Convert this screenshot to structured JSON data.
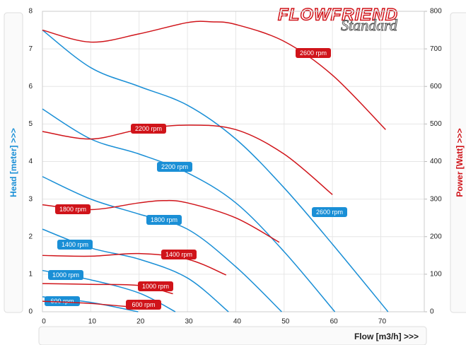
{
  "logo": {
    "brand": "FLOWFRIEND",
    "edition": "Standard"
  },
  "chart_data": {
    "type": "line",
    "xlabel": "Flow [m3/h] >>>",
    "ylabel": "Head [meter] >>>",
    "y2label": "Power [Watt] >>>",
    "xlim": [
      0,
      79
    ],
    "xticks": [
      0,
      10,
      20,
      30,
      40,
      50,
      60,
      70
    ],
    "ylim": [
      0,
      8
    ],
    "yticks": [
      0,
      1,
      2,
      3,
      4,
      5,
      6,
      7,
      8
    ],
    "y2lim": [
      0,
      800
    ],
    "y2ticks": [
      0,
      100,
      200,
      300,
      400,
      500,
      600,
      700,
      800
    ],
    "grid": true,
    "series": [
      {
        "name": "2600 rpm",
        "color": "#1a8fd6",
        "x": [
          0,
          10,
          20,
          30,
          40,
          50,
          60,
          71.5
        ],
        "values": [
          7.5,
          6.5,
          6.0,
          5.5,
          4.6,
          3.3,
          1.8,
          0
        ]
      },
      {
        "name": "2200 rpm",
        "color": "#1a8fd6",
        "x": [
          0,
          10,
          20,
          30,
          40,
          50,
          60.5
        ],
        "values": [
          5.4,
          4.6,
          4.2,
          3.7,
          2.9,
          1.6,
          0
        ]
      },
      {
        "name": "1800 rpm",
        "color": "#1a8fd6",
        "x": [
          0,
          10,
          20,
          30,
          40,
          49.5
        ],
        "values": [
          3.6,
          3.0,
          2.6,
          2.2,
          1.2,
          0
        ]
      },
      {
        "name": "1400 rpm",
        "color": "#1a8fd6",
        "x": [
          0,
          10,
          20,
          30,
          38.5
        ],
        "values": [
          2.2,
          1.7,
          1.4,
          0.9,
          0
        ]
      },
      {
        "name": "1000 rpm",
        "color": "#1a8fd6",
        "x": [
          0,
          10,
          20,
          27.5
        ],
        "values": [
          1.1,
          0.85,
          0.5,
          0
        ]
      },
      {
        "name": "600 rpm",
        "color": "#1a8fd6",
        "x": [
          0,
          10,
          19.8
        ],
        "values": [
          0.4,
          0.25,
          0
        ]
      },
      {
        "name": "2600 rpm",
        "color": "#d0141a",
        "axis": "y2",
        "x": [
          0,
          10,
          20,
          30,
          35,
          40,
          50,
          60,
          71
        ],
        "values": [
          750,
          718,
          740,
          770,
          772,
          765,
          720,
          630,
          485
        ]
      },
      {
        "name": "2200 rpm",
        "color": "#d0141a",
        "axis": "y2",
        "x": [
          0,
          10,
          20,
          30,
          40,
          50,
          60
        ],
        "values": [
          480,
          460,
          485,
          497,
          485,
          420,
          312
        ]
      },
      {
        "name": "1800 rpm",
        "color": "#d0141a",
        "axis": "y2",
        "x": [
          0,
          10,
          20,
          25,
          30,
          40,
          49
        ],
        "values": [
          285,
          272,
          290,
          296,
          290,
          250,
          185
        ]
      },
      {
        "name": "1400 rpm",
        "color": "#d0141a",
        "axis": "y2",
        "x": [
          0,
          10,
          20,
          30,
          38
        ],
        "values": [
          150,
          148,
          155,
          140,
          98
        ]
      },
      {
        "name": "1000 rpm",
        "color": "#d0141a",
        "axis": "y2",
        "x": [
          0,
          10,
          20,
          27
        ],
        "values": [
          75,
          73,
          70,
          48
        ]
      },
      {
        "name": "600 rpm",
        "color": "#d0141a",
        "axis": "y2",
        "x": [
          0,
          10,
          19
        ],
        "values": [
          28,
          22,
          12
        ]
      }
    ]
  }
}
